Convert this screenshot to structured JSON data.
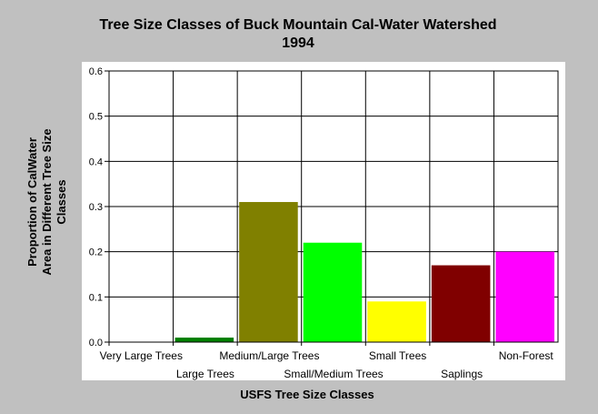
{
  "chart_data": {
    "type": "bar",
    "title": [
      "Tree Size Classes of Buck Mountain Cal-Water Watershed",
      "1994"
    ],
    "xlabel": "USFS Tree Size Classes",
    "ylabel": [
      "Proportion of CalWater",
      "Area in Different Tree Size",
      "Classes"
    ],
    "categories": [
      "Very Large Trees",
      "Large Trees",
      "Medium/Large Trees",
      "Small/Medium Trees",
      "Small Trees",
      "Saplings",
      "Non-Forest"
    ],
    "values": [
      0.0,
      0.01,
      0.31,
      0.22,
      0.09,
      0.17,
      0.2
    ],
    "colors": [
      "#008000",
      "#008000",
      "#808000",
      "#00ff00",
      "#ffff00",
      "#800000",
      "#ff00ff"
    ],
    "ylim": [
      0,
      0.6
    ],
    "yticks": [
      "0.0",
      "0.1",
      "0.2",
      "0.3",
      "0.4",
      "0.5",
      "0.6"
    ],
    "grid": true,
    "legend": "none"
  }
}
